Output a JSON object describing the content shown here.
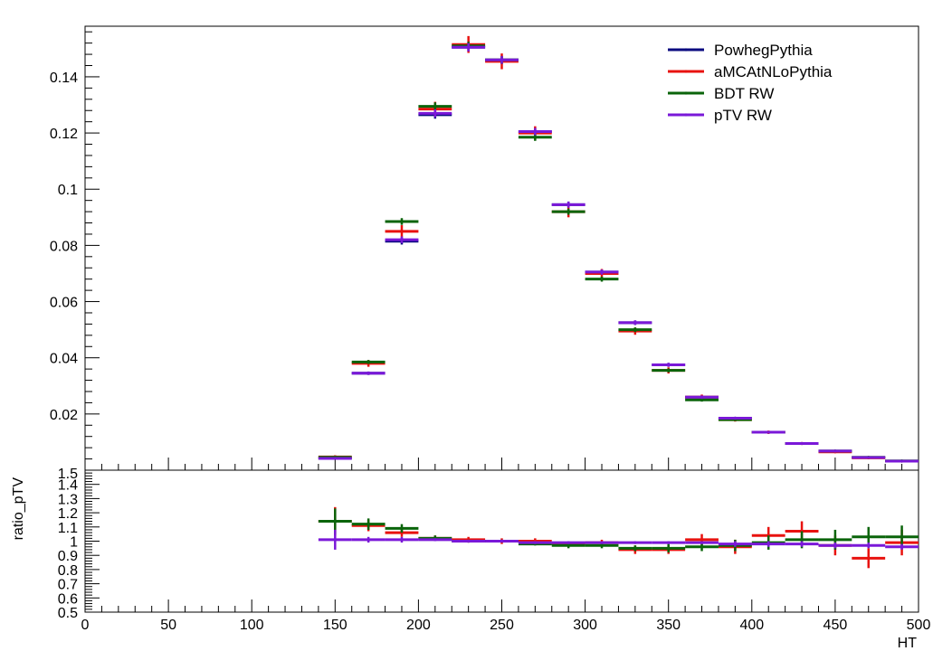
{
  "chart_data": [
    {
      "type": "scatter",
      "panel": "main",
      "xlabel": "HT",
      "ylabel": "",
      "xlim": [
        0,
        500
      ],
      "ylim": [
        0.0,
        0.158
      ],
      "y_ticks": [
        0.02,
        0.04,
        0.06,
        0.08,
        0.1,
        0.12,
        0.14
      ],
      "y_tick_labels": [
        "0.02",
        "0.04",
        "0.06",
        "0.08",
        "0.1",
        "0.12",
        "0.14"
      ],
      "x": [
        150,
        170,
        190,
        210,
        230,
        250,
        270,
        290,
        310,
        330,
        350,
        370,
        390,
        410,
        430,
        450,
        470,
        490
      ],
      "bin_half_width": 10,
      "legend_position": "top-right",
      "grid": false,
      "series": [
        {
          "name": "PowhegPythia",
          "color": "#0b0b80",
          "values": [
            0.0042,
            0.0345,
            0.0815,
            0.1265,
            0.1505,
            0.146,
            0.1205,
            0.0945,
            0.0705,
            0.0525,
            0.0375,
            0.026,
            0.0185,
            0.0135,
            0.0095,
            0.0068,
            0.0045,
            0.0032
          ],
          "errors": [
            0.0004,
            0.0006,
            0.0012,
            0.0014,
            0.0015,
            0.0014,
            0.0013,
            0.0011,
            0.0009,
            0.0008,
            0.0007,
            0.0006,
            0.0005,
            0.0004,
            0.0004,
            0.0003,
            0.0003,
            0.0002
          ]
        },
        {
          "name": "aMCAtNLoPythia",
          "color": "#e8120f",
          "values": [
            0.0047,
            0.038,
            0.085,
            0.1285,
            0.1515,
            0.1455,
            0.12,
            0.092,
            0.07,
            0.0495,
            0.0355,
            0.026,
            0.018,
            0.0135,
            0.0095,
            0.0065,
            0.0044,
            0.0032
          ],
          "errors": [
            0.0006,
            0.0012,
            0.0022,
            0.0026,
            0.003,
            0.0028,
            0.0024,
            0.002,
            0.0016,
            0.0013,
            0.0011,
            0.0009,
            0.0007,
            0.0006,
            0.0005,
            0.0004,
            0.0004,
            0.0003
          ]
        },
        {
          "name": "BDT RW",
          "color": "#0a640a",
          "values": [
            0.0046,
            0.0385,
            0.0885,
            0.1295,
            0.151,
            0.146,
            0.1185,
            0.092,
            0.068,
            0.05,
            0.0355,
            0.025,
            0.018,
            0.0135,
            0.0095,
            0.0068,
            0.0046,
            0.0033
          ],
          "errors": [
            0.0004,
            0.0007,
            0.0012,
            0.0014,
            0.0015,
            0.0014,
            0.0013,
            0.0011,
            0.0009,
            0.0008,
            0.0007,
            0.0006,
            0.0005,
            0.0004,
            0.0004,
            0.0003,
            0.0003,
            0.0002
          ]
        },
        {
          "name": "pTV RW",
          "color": "#7a18d8",
          "values": [
            0.0042,
            0.0345,
            0.082,
            0.127,
            0.1505,
            0.146,
            0.1205,
            0.0945,
            0.0705,
            0.0525,
            0.0375,
            0.026,
            0.0185,
            0.0135,
            0.0095,
            0.0068,
            0.0045,
            0.0032
          ],
          "errors": [
            0.0004,
            0.0006,
            0.0012,
            0.0014,
            0.0015,
            0.0014,
            0.0013,
            0.0011,
            0.0009,
            0.0008,
            0.0007,
            0.0006,
            0.0005,
            0.0004,
            0.0004,
            0.0003,
            0.0003,
            0.0002
          ]
        }
      ]
    },
    {
      "type": "scatter",
      "panel": "ratio",
      "xlabel": "HT",
      "ylabel": "ratio_pTV",
      "xlim": [
        0,
        500
      ],
      "ylim": [
        0.5,
        1.5
      ],
      "x_ticks": [
        0,
        50,
        100,
        150,
        200,
        250,
        300,
        350,
        400,
        450,
        500
      ],
      "x_tick_labels": [
        "0",
        "50",
        "100",
        "150",
        "200",
        "250",
        "300",
        "350",
        "400",
        "450",
        "500"
      ],
      "y_ticks": [
        0.5,
        0.6,
        0.7,
        0.8,
        0.9,
        1.0,
        1.1,
        1.2,
        1.3,
        1.4,
        1.5
      ],
      "y_tick_labels": [
        "0.5",
        "0.6",
        "0.7",
        "0.8",
        "0.9",
        "1",
        "1.1",
        "1.2",
        "1.3",
        "1.4",
        "1.5"
      ],
      "x": [
        150,
        170,
        190,
        210,
        230,
        250,
        270,
        290,
        310,
        330,
        350,
        370,
        390,
        410,
        430,
        450,
        470,
        490
      ],
      "bin_half_width": 10,
      "grid": false,
      "series": [
        {
          "color": "#e8120f",
          "values": [
            1.14,
            1.11,
            1.06,
            1.02,
            1.01,
            1.0,
            1.0,
            0.98,
            0.99,
            0.94,
            0.94,
            1.01,
            0.96,
            1.04,
            1.07,
            0.97,
            0.88,
            0.99
          ],
          "errors": [
            0.1,
            0.04,
            0.03,
            0.02,
            0.02,
            0.02,
            0.02,
            0.02,
            0.02,
            0.03,
            0.03,
            0.04,
            0.05,
            0.06,
            0.07,
            0.07,
            0.07,
            0.09
          ]
        },
        {
          "color": "#0a640a",
          "values": [
            1.14,
            1.12,
            1.09,
            1.02,
            1.0,
            1.0,
            0.98,
            0.97,
            0.97,
            0.95,
            0.95,
            0.96,
            0.97,
            0.99,
            1.01,
            1.01,
            1.03,
            1.03
          ],
          "errors": [
            0.09,
            0.04,
            0.03,
            0.02,
            0.01,
            0.01,
            0.01,
            0.02,
            0.02,
            0.02,
            0.03,
            0.03,
            0.04,
            0.05,
            0.06,
            0.07,
            0.07,
            0.08
          ]
        },
        {
          "color": "#7a18d8",
          "values": [
            1.01,
            1.01,
            1.01,
            1.01,
            1.0,
            1.0,
            0.99,
            0.99,
            0.99,
            0.99,
            0.99,
            0.99,
            0.98,
            0.98,
            0.98,
            0.97,
            0.97,
            0.96
          ],
          "errors": [
            0.07,
            0.02,
            0.02,
            0.01,
            0.01,
            0.01,
            0.01,
            0.01,
            0.01,
            0.01,
            0.01,
            0.01,
            0.02,
            0.02,
            0.02,
            0.02,
            0.02,
            0.02
          ]
        }
      ]
    }
  ]
}
